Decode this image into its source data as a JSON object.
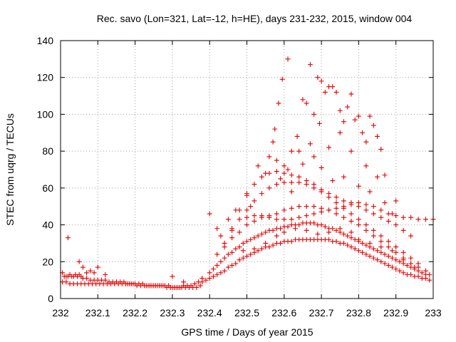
{
  "chart_data": {
    "type": "scatter",
    "title": "Rec. savo (Lon=321, Lat=-12, h=HE), days 231-232, 2015, window 004",
    "xlabel": "GPS time / Days of year 2015",
    "ylabel": "STEC from uqrg / TECUs",
    "xlim": [
      232,
      233
    ],
    "ylim": [
      0,
      140
    ],
    "xticks": [
      232,
      232.1,
      232.2,
      232.3,
      232.4,
      232.5,
      232.6,
      232.7,
      232.8,
      232.9,
      233
    ],
    "xtick_labels": [
      "232",
      "232.1",
      "232.2",
      "232.3",
      "232.4",
      "232.5",
      "232.6",
      "232.7",
      "232.8",
      "232.9",
      "233"
    ],
    "yticks": [
      0,
      20,
      40,
      60,
      80,
      100,
      120,
      140
    ],
    "ytick_labels": [
      "0",
      "20",
      "40",
      "60",
      "80",
      "100",
      "120",
      "140"
    ],
    "grid": true,
    "marker": "plus",
    "color": "#e00000",
    "series": [
      {
        "x": [
          232.005,
          232.01,
          232.015,
          232.02,
          232.025,
          232.03,
          232.035,
          232.04,
          232.045,
          232.05,
          232.055,
          232.06,
          232.07,
          232.08,
          232.09,
          232.1,
          232.11,
          232.12,
          232.13,
          232.14,
          232.15,
          232.16,
          232.17,
          232.18,
          232.19,
          232.2,
          232.21,
          232.22,
          232.23,
          232.24,
          232.25,
          232.26,
          232.27,
          232.28,
          232.29,
          232.3,
          232.31,
          232.32,
          232.33,
          232.34,
          232.35,
          232.36,
          232.37,
          232.38
        ],
        "y": [
          14,
          12,
          12,
          12,
          13,
          12,
          12,
          13,
          12,
          13,
          12,
          11,
          11,
          10,
          10,
          10,
          10,
          10,
          9,
          9,
          9,
          9,
          9,
          8,
          8,
          8,
          8,
          8,
          7,
          7,
          7,
          7,
          7,
          7,
          7,
          6,
          6,
          6,
          7,
          7,
          7,
          8,
          9,
          11
        ]
      },
      {
        "x": [
          232.005,
          232.015,
          232.025,
          232.035,
          232.045,
          232.055,
          232.065,
          232.075,
          232.085,
          232.095,
          232.105,
          232.115,
          232.125,
          232.135,
          232.145,
          232.155,
          232.165,
          232.175,
          232.185,
          232.195,
          232.205,
          232.215,
          232.225,
          232.235,
          232.245,
          232.255,
          232.265,
          232.275,
          232.285,
          232.295,
          232.305,
          232.315,
          232.325,
          232.335,
          232.345,
          232.355,
          232.365,
          232.375
        ],
        "y": [
          9,
          9,
          8,
          8,
          8,
          8,
          8,
          8,
          8,
          8,
          8,
          8,
          8,
          8,
          8,
          8,
          8,
          8,
          8,
          8,
          7,
          7,
          7,
          7,
          7,
          7,
          7,
          7,
          6,
          6,
          6,
          6,
          6,
          6,
          6,
          6,
          6,
          7
        ]
      },
      {
        "x": [
          232.02,
          232.05,
          232.06,
          232.07,
          232.08,
          232.09,
          232.1,
          232.12,
          232.3,
          232.33
        ],
        "y": [
          33,
          20,
          17,
          14,
          15,
          14,
          17,
          13,
          12,
          9
        ]
      },
      {
        "x": [
          232.38,
          232.39,
          232.4,
          232.41,
          232.42,
          232.43,
          232.44,
          232.45,
          232.46,
          232.47,
          232.48,
          232.49,
          232.5,
          232.51,
          232.52,
          232.53,
          232.54,
          232.55,
          232.56,
          232.57,
          232.58,
          232.59,
          232.6,
          232.61,
          232.62,
          232.63,
          232.64,
          232.65,
          232.66,
          232.67,
          232.68,
          232.69,
          232.7,
          232.71,
          232.72,
          232.73,
          232.74,
          232.75,
          232.76,
          232.77,
          232.78,
          232.79,
          232.8,
          232.81,
          232.82,
          232.83,
          232.84,
          232.85,
          232.86,
          232.87,
          232.88,
          232.89,
          232.9,
          232.91,
          232.92,
          232.93,
          232.94,
          232.95,
          232.96,
          232.97,
          232.98,
          232.99
        ],
        "y": [
          9,
          10,
          11,
          12,
          13,
          14,
          15,
          17,
          18,
          19,
          21,
          22,
          23,
          24,
          25,
          26,
          27,
          28,
          28,
          29,
          30,
          30,
          31,
          31,
          31,
          32,
          32,
          32,
          32,
          32,
          32,
          32,
          32,
          32,
          32,
          31,
          31,
          30,
          30,
          29,
          28,
          27,
          26,
          25,
          24,
          23,
          22,
          21,
          20,
          19,
          18,
          17,
          16,
          15,
          14,
          13,
          13,
          12,
          12,
          11,
          11,
          10
        ]
      },
      {
        "x": [
          232.4,
          232.41,
          232.42,
          232.43,
          232.44,
          232.45,
          232.46,
          232.47,
          232.48,
          232.49,
          232.5,
          232.51,
          232.52,
          232.53,
          232.54,
          232.55,
          232.56,
          232.57,
          232.58,
          232.59,
          232.6,
          232.61,
          232.62,
          232.63,
          232.64,
          232.65,
          232.66,
          232.67,
          232.68,
          232.69,
          232.7,
          232.71,
          232.72,
          232.73,
          232.74,
          232.75,
          232.76,
          232.77,
          232.78,
          232.79,
          232.8,
          232.81,
          232.82,
          232.83,
          232.84,
          232.85,
          232.86,
          232.87,
          232.88,
          232.89,
          232.9,
          232.91,
          232.92,
          232.93,
          232.94,
          232.95,
          232.96,
          232.97,
          232.98,
          232.99
        ],
        "y": [
          14,
          16,
          18,
          20,
          22,
          24,
          25,
          27,
          28,
          30,
          31,
          32,
          33,
          34,
          35,
          36,
          37,
          37,
          38,
          38,
          39,
          39,
          40,
          40,
          40,
          41,
          41,
          41,
          41,
          40,
          40,
          39,
          38,
          38,
          37,
          36,
          35,
          34,
          33,
          32,
          31,
          30,
          29,
          28,
          27,
          26,
          25,
          24,
          23,
          22,
          21,
          20,
          19,
          18,
          17,
          16,
          15,
          14,
          13,
          13
        ]
      },
      {
        "x": [
          232.42,
          232.44,
          232.46,
          232.48,
          232.5,
          232.52,
          232.54,
          232.56,
          232.58,
          232.6,
          232.62,
          232.64,
          232.66,
          232.68,
          232.7,
          232.72,
          232.74,
          232.76,
          232.78,
          232.8,
          232.82,
          232.84,
          232.86,
          232.88,
          232.9,
          232.92,
          232.94,
          232.96,
          232.98
        ],
        "y": [
          24,
          28,
          33,
          36,
          40,
          42,
          44,
          45,
          46,
          48,
          49,
          50,
          50,
          50,
          49,
          48,
          46,
          44,
          42,
          40,
          37,
          34,
          31,
          28,
          25,
          22,
          19,
          17,
          15
        ]
      },
      {
        "x": [
          232.44,
          232.46,
          232.48,
          232.5,
          232.52,
          232.54,
          232.56,
          232.58,
          232.6,
          232.62,
          232.64,
          232.66,
          232.68,
          232.7,
          232.72,
          232.74,
          232.76,
          232.78,
          232.8,
          232.82,
          232.84,
          232.86,
          232.88,
          232.9,
          232.92,
          232.94,
          232.96
        ],
        "y": [
          30,
          37,
          43,
          48,
          53,
          57,
          60,
          62,
          63,
          63,
          63,
          62,
          60,
          58,
          55,
          52,
          49,
          46,
          43,
          40,
          37,
          34,
          31,
          28,
          25,
          22,
          19
        ]
      },
      {
        "x": [
          232.46,
          232.48,
          232.5,
          232.52,
          232.54,
          232.56,
          232.58,
          232.6,
          232.62,
          232.64,
          232.66,
          232.68,
          232.7,
          232.72,
          232.74,
          232.76,
          232.78,
          232.8,
          232.82,
          232.84,
          232.86,
          232.88,
          232.9,
          232.92,
          232.94
        ],
        "y": [
          38,
          48,
          56,
          62,
          66,
          68,
          69,
          68,
          67,
          66,
          64,
          62,
          59,
          57,
          55,
          53,
          52,
          50,
          48,
          46,
          44,
          42,
          40,
          37,
          34
        ]
      },
      {
        "x": [
          232.5,
          232.52,
          232.54,
          232.56,
          232.58,
          232.6,
          232.62,
          232.64,
          232.66,
          232.68,
          232.7,
          232.72,
          232.74,
          232.76,
          232.78,
          232.8,
          232.82,
          232.84,
          232.86,
          232.88,
          232.9,
          232.92,
          232.94,
          232.96,
          232.98,
          233
        ],
        "y": [
          44,
          45,
          45,
          44,
          43,
          43,
          43,
          44,
          45,
          46,
          47,
          48,
          49,
          50,
          51,
          52,
          51,
          50,
          48,
          46,
          45,
          44,
          44,
          43,
          43,
          43
        ]
      },
      {
        "x": [
          232.56,
          232.575,
          232.585,
          232.595,
          232.6,
          232.61,
          232.62,
          232.635,
          232.65,
          232.66,
          232.67,
          232.68,
          232.69,
          232.695,
          232.7,
          232.71,
          232.72,
          232.73,
          232.74,
          232.75,
          232.76,
          232.77,
          232.78,
          232.79,
          232.8,
          232.81,
          232.82,
          232.83,
          232.84,
          232.85,
          232.86,
          232.87
        ],
        "y": [
          77,
          92,
          106,
          119,
          72,
          130,
          80,
          88,
          108,
          106,
          127,
          100,
          120,
          95,
          118,
          112,
          115,
          115,
          112,
          102,
          96,
          104,
          111,
          97,
          99,
          90,
          85,
          99,
          94,
          88,
          81,
          67
        ]
      },
      {
        "x": [
          232.4,
          232.42,
          232.43,
          232.45,
          232.47,
          232.5,
          232.51,
          232.53,
          232.55,
          232.57,
          232.58,
          232.59,
          232.61,
          232.62,
          232.64,
          232.65,
          232.67,
          232.68,
          232.7,
          232.72,
          232.73,
          232.75,
          232.76,
          232.78,
          232.8,
          232.82,
          232.83,
          232.85,
          232.87,
          232.89,
          232.9
        ],
        "y": [
          46,
          38,
          34,
          43,
          48,
          57,
          50,
          72,
          68,
          85,
          75,
          65,
          70,
          58,
          80,
          73,
          84,
          77,
          71,
          82,
          64,
          90,
          66,
          80,
          61,
          72,
          58,
          66,
          52,
          46,
          53
        ]
      },
      {
        "x": [
          232.49,
          232.52,
          232.55,
          232.58,
          232.6,
          232.63,
          232.66,
          232.69,
          232.72,
          232.75,
          232.78,
          232.8,
          232.83,
          232.86,
          232.89,
          232.92,
          232.95
        ],
        "y": [
          26,
          27,
          30,
          34,
          36,
          38,
          37,
          35,
          36,
          38,
          36,
          32,
          30,
          28,
          26,
          21,
          17
        ]
      }
    ]
  }
}
